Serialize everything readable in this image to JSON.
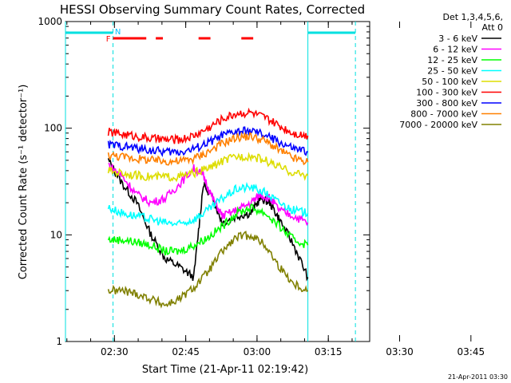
{
  "chart_data": {
    "type": "line",
    "title": "HESSI Observing Summary Count Rates, Corrected",
    "xlabel": "Start Time (21-Apr-11 02:19:42)",
    "ylabel": "Corrected Count Rate (s⁻¹ detector⁻¹)",
    "ylog": true,
    "ylim": [
      1,
      1000
    ],
    "xlim_minutes_after_start": [
      0,
      64
    ],
    "x_ticks": [
      "02:30",
      "02:45",
      "03:00",
      "03:15",
      "03:30",
      "03:45"
    ],
    "y_ticks": [
      "1",
      "10",
      "100",
      "1000"
    ],
    "legend_header": [
      "Det 1,3,4,5,6,",
      "Att 0"
    ],
    "series": [
      {
        "name": "3 - 6 keV",
        "color": "#000000",
        "points": [
          [
            9,
            50
          ],
          [
            12,
            30
          ],
          [
            15,
            20
          ],
          [
            18,
            10
          ],
          [
            21,
            6
          ],
          [
            24,
            5
          ],
          [
            27,
            4
          ],
          [
            29,
            30
          ],
          [
            31,
            22
          ],
          [
            33,
            13
          ],
          [
            36,
            15
          ],
          [
            39,
            16
          ],
          [
            41,
            22
          ],
          [
            43,
            20
          ],
          [
            45,
            14
          ],
          [
            48,
            8
          ],
          [
            51,
            4
          ]
        ]
      },
      {
        "name": "6 - 12 keV",
        "color": "#ff00ff",
        "points": [
          [
            9,
            46
          ],
          [
            12,
            35
          ],
          [
            15,
            24
          ],
          [
            18,
            20
          ],
          [
            21,
            22
          ],
          [
            24,
            30
          ],
          [
            27,
            42
          ],
          [
            29,
            36
          ],
          [
            31,
            22
          ],
          [
            33,
            15
          ],
          [
            36,
            17
          ],
          [
            39,
            20
          ],
          [
            41,
            24
          ],
          [
            43,
            22
          ],
          [
            45,
            17
          ],
          [
            48,
            15
          ],
          [
            51,
            13
          ]
        ]
      },
      {
        "name": "12 - 25 keV",
        "color": "#00ff00",
        "points": [
          [
            9,
            9
          ],
          [
            12,
            9
          ],
          [
            15,
            8.5
          ],
          [
            18,
            8
          ],
          [
            21,
            7
          ],
          [
            24,
            7
          ],
          [
            27,
            8
          ],
          [
            30,
            9.5
          ],
          [
            33,
            12
          ],
          [
            36,
            16
          ],
          [
            39,
            18
          ],
          [
            42,
            16
          ],
          [
            45,
            12
          ],
          [
            48,
            9
          ],
          [
            51,
            8
          ]
        ]
      },
      {
        "name": "25 - 50 keV",
        "color": "#00ffff",
        "points": [
          [
            9,
            18
          ],
          [
            12,
            16
          ],
          [
            15,
            15
          ],
          [
            18,
            14
          ],
          [
            21,
            13
          ],
          [
            24,
            12.5
          ],
          [
            27,
            14
          ],
          [
            30,
            17
          ],
          [
            33,
            22
          ],
          [
            36,
            27
          ],
          [
            39,
            28
          ],
          [
            42,
            25
          ],
          [
            45,
            20
          ],
          [
            48,
            17
          ],
          [
            51,
            16
          ]
        ]
      },
      {
        "name": "50 - 100 keV",
        "color": "#dddd00",
        "points": [
          [
            9,
            40
          ],
          [
            12,
            38
          ],
          [
            15,
            36
          ],
          [
            18,
            35
          ],
          [
            21,
            35
          ],
          [
            24,
            35
          ],
          [
            27,
            38
          ],
          [
            30,
            42
          ],
          [
            33,
            49
          ],
          [
            36,
            54
          ],
          [
            39,
            55
          ],
          [
            42,
            50
          ],
          [
            45,
            43
          ],
          [
            48,
            38
          ],
          [
            51,
            36
          ]
        ]
      },
      {
        "name": "100 - 300 keV",
        "color": "#ff0000",
        "points": [
          [
            9,
            92
          ],
          [
            12,
            88
          ],
          [
            15,
            84
          ],
          [
            18,
            80
          ],
          [
            21,
            78
          ],
          [
            24,
            78
          ],
          [
            27,
            85
          ],
          [
            30,
            100
          ],
          [
            33,
            122
          ],
          [
            36,
            138
          ],
          [
            39,
            140
          ],
          [
            42,
            125
          ],
          [
            45,
            105
          ],
          [
            48,
            90
          ],
          [
            51,
            85
          ]
        ]
      },
      {
        "name": "300 - 800 keV",
        "color": "#0000ff",
        "points": [
          [
            9,
            70
          ],
          [
            12,
            68
          ],
          [
            15,
            65
          ],
          [
            18,
            62
          ],
          [
            21,
            60
          ],
          [
            24,
            60
          ],
          [
            27,
            64
          ],
          [
            30,
            73
          ],
          [
            33,
            85
          ],
          [
            36,
            93
          ],
          [
            39,
            94
          ],
          [
            42,
            86
          ],
          [
            45,
            74
          ],
          [
            48,
            64
          ],
          [
            51,
            60
          ]
        ]
      },
      {
        "name": "800 - 7000 keV",
        "color": "#ff8000",
        "points": [
          [
            9,
            56
          ],
          [
            12,
            54
          ],
          [
            15,
            52
          ],
          [
            18,
            50
          ],
          [
            21,
            49
          ],
          [
            24,
            49
          ],
          [
            27,
            52
          ],
          [
            30,
            60
          ],
          [
            33,
            72
          ],
          [
            36,
            82
          ],
          [
            39,
            84
          ],
          [
            42,
            76
          ],
          [
            45,
            62
          ],
          [
            48,
            52
          ],
          [
            51,
            48
          ]
        ]
      },
      {
        "name": "7000 - 20000 keV",
        "color": "#808000",
        "points": [
          [
            9,
            3
          ],
          [
            12,
            3
          ],
          [
            15,
            2.8
          ],
          [
            18,
            2.5
          ],
          [
            21,
            2.2
          ],
          [
            24,
            2.5
          ],
          [
            27,
            3.2
          ],
          [
            30,
            4.5
          ],
          [
            33,
            7
          ],
          [
            36,
            9.5
          ],
          [
            39,
            10
          ],
          [
            42,
            8
          ],
          [
            45,
            5
          ],
          [
            48,
            3.5
          ],
          [
            51,
            3
          ]
        ]
      }
    ],
    "annotations": [
      {
        "text": "F",
        "color": "#ff0000"
      },
      {
        "text": "N",
        "color": "#00bfff"
      }
    ],
    "flare_intervals_minutes": [
      [
        10,
        17
      ],
      [
        19,
        20.5
      ],
      [
        28,
        30.5
      ],
      [
        37,
        39.5
      ]
    ],
    "daylight_intervals_minutes": [
      [
        0,
        10
      ],
      [
        51,
        61
      ]
    ],
    "orbit_lines_minutes": [
      0,
      10,
      51,
      61
    ],
    "grid": false
  },
  "footer": {
    "date_stamp": "21-Apr-2011 03:30"
  }
}
